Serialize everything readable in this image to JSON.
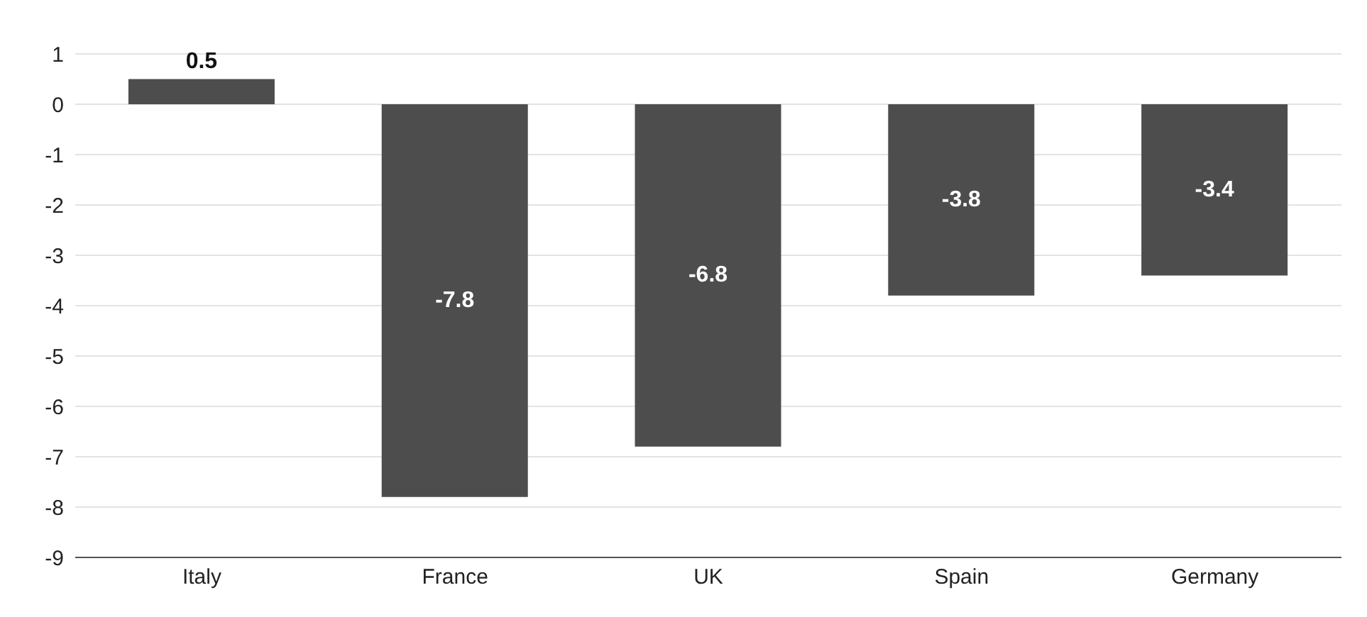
{
  "chart_data": {
    "type": "bar",
    "categories": [
      "Italy",
      "France",
      "UK",
      "Spain",
      "Germany"
    ],
    "values": [
      0.5,
      -7.8,
      -6.8,
      -3.8,
      -3.4
    ],
    "color": "#4d4d4d",
    "ylim": [
      -9,
      1
    ],
    "yticks": [
      -9,
      -8,
      -7,
      -6,
      -5,
      -4,
      -3,
      -2,
      -1,
      0,
      1
    ],
    "grid": "y",
    "data_labels": true
  }
}
